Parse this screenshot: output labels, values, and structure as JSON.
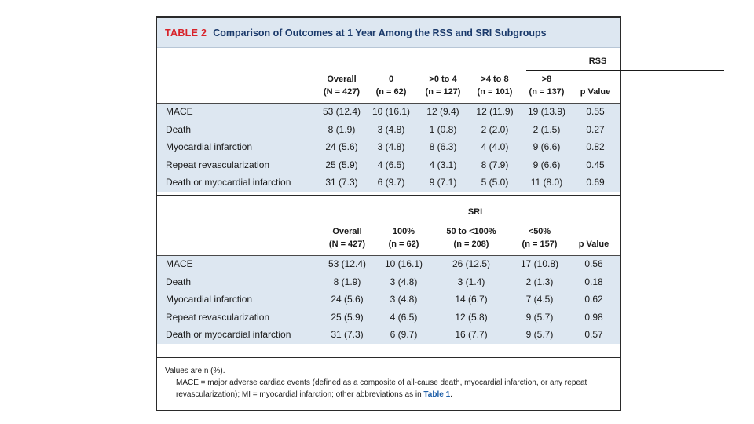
{
  "table": {
    "tag": "TABLE 2",
    "title": "Comparison of Outcomes at 1 Year Among the RSS and SRI Subgroups"
  },
  "rss": {
    "group_label": "RSS",
    "headers": [
      {
        "line1": "Overall",
        "line2": "(N = 427)"
      },
      {
        "line1": "0",
        "line2": "(n = 62)"
      },
      {
        "line1": ">0 to 4",
        "line2": "(n = 127)"
      },
      {
        "line1": ">4 to 8",
        "line2": "(n = 101)"
      },
      {
        "line1": ">8",
        "line2": "(n = 137)"
      },
      {
        "line1": "",
        "line2": "p Value"
      }
    ],
    "rows": [
      {
        "label": "MACE",
        "values": [
          "53 (12.4)",
          "10 (16.1)",
          "12 (9.4)",
          "12 (11.9)",
          "19 (13.9)",
          "0.55"
        ]
      },
      {
        "label": "Death",
        "values": [
          "8 (1.9)",
          "3 (4.8)",
          "1 (0.8)",
          "2 (2.0)",
          "2 (1.5)",
          "0.27"
        ]
      },
      {
        "label": "Myocardial infarction",
        "values": [
          "24 (5.6)",
          "3 (4.8)",
          "8 (6.3)",
          "4 (4.0)",
          "9 (6.6)",
          "0.82"
        ]
      },
      {
        "label": "Repeat revascularization",
        "values": [
          "25 (5.9)",
          "4 (6.5)",
          "4 (3.1)",
          "8 (7.9)",
          "9 (6.6)",
          "0.45"
        ]
      },
      {
        "label": "Death or myocardial infarction",
        "values": [
          "31 (7.3)",
          "6 (9.7)",
          "9 (7.1)",
          "5 (5.0)",
          "11 (8.0)",
          "0.69"
        ]
      }
    ]
  },
  "sri": {
    "group_label": "SRI",
    "headers": [
      {
        "line1": "Overall",
        "line2": "(N = 427)"
      },
      {
        "line1": "100%",
        "line2": "(n = 62)"
      },
      {
        "line1": "50 to <100%",
        "line2": "(n = 208)"
      },
      {
        "line1": "<50%",
        "line2": "(n = 157)"
      },
      {
        "line1": "",
        "line2": "p Value"
      }
    ],
    "rows": [
      {
        "label": "MACE",
        "values": [
          "53 (12.4)",
          "10 (16.1)",
          "26 (12.5)",
          "17 (10.8)",
          "0.56"
        ]
      },
      {
        "label": "Death",
        "values": [
          "8 (1.9)",
          "3 (4.8)",
          "3 (1.4)",
          "2 (1.3)",
          "0.18"
        ]
      },
      {
        "label": "Myocardial infarction",
        "values": [
          "24 (5.6)",
          "3 (4.8)",
          "14 (6.7)",
          "7 (4.5)",
          "0.62"
        ]
      },
      {
        "label": "Repeat revascularization",
        "values": [
          "25 (5.9)",
          "4 (6.5)",
          "12 (5.8)",
          "9 (5.7)",
          "0.98"
        ]
      },
      {
        "label": "Death or myocardial infarction",
        "values": [
          "31 (7.3)",
          "6 (9.7)",
          "16 (7.7)",
          "9 (5.7)",
          "0.57"
        ]
      }
    ]
  },
  "footnote": {
    "line1": "Values are n (%).",
    "line2_text": "MACE = major adverse cardiac events (defined as a composite of all-cause death, myocardial infarction, or any repeat revascularization); MI = myocardial infarction; other abbreviations as in ",
    "line2_link": "Table 1",
    "line2_end": "."
  },
  "colors": {
    "header_band": "#dde7f1",
    "tag_red": "#d8232a",
    "title_navy": "#1b3a6b",
    "link_blue": "#1f5fa8"
  }
}
